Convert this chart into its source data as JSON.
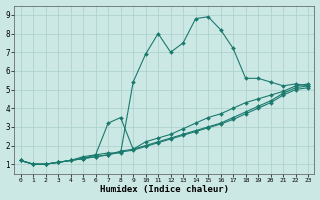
{
  "xlabel": "Humidex (Indice chaleur)",
  "bg_color": "#cce8e4",
  "grid_color": "#aacfcc",
  "line_color": "#1a7a6e",
  "xlim": [
    -0.5,
    23.5
  ],
  "ylim": [
    0.5,
    9.5
  ],
  "xticks": [
    0,
    1,
    2,
    3,
    4,
    5,
    6,
    7,
    8,
    9,
    10,
    11,
    12,
    13,
    14,
    15,
    16,
    17,
    18,
    19,
    20,
    21,
    22,
    23
  ],
  "yticks": [
    1,
    2,
    3,
    4,
    5,
    6,
    7,
    8,
    9
  ],
  "line1_x": [
    0,
    1,
    2,
    3,
    4,
    5,
    6,
    7,
    8,
    9,
    10,
    11,
    12,
    13,
    14,
    15,
    16,
    17,
    18,
    19,
    20,
    21,
    22,
    23
  ],
  "line1_y": [
    1.2,
    1.0,
    1.0,
    1.1,
    1.2,
    1.4,
    1.5,
    1.6,
    1.6,
    5.4,
    6.9,
    8.0,
    7.0,
    7.5,
    8.8,
    8.9,
    8.2,
    7.2,
    5.6,
    5.6,
    5.4,
    5.2,
    5.3,
    5.2
  ],
  "line2_x": [
    0,
    1,
    2,
    3,
    4,
    5,
    6,
    7,
    8,
    9,
    10,
    11,
    12,
    13,
    14,
    15,
    16,
    17,
    18,
    19,
    20,
    21,
    22,
    23
  ],
  "line2_y": [
    1.2,
    1.0,
    1.0,
    1.1,
    1.2,
    1.3,
    1.5,
    3.2,
    3.5,
    1.8,
    2.2,
    2.4,
    2.6,
    2.9,
    3.2,
    3.5,
    3.7,
    4.0,
    4.3,
    4.5,
    4.7,
    4.9,
    5.2,
    5.3
  ],
  "line3_x": [
    0,
    1,
    2,
    3,
    4,
    5,
    6,
    7,
    8,
    9,
    10,
    11,
    12,
    13,
    14,
    15,
    16,
    17,
    18,
    19,
    20,
    21,
    22,
    23
  ],
  "line3_y": [
    1.2,
    1.0,
    1.0,
    1.1,
    1.2,
    1.3,
    1.4,
    1.5,
    1.7,
    1.8,
    2.0,
    2.2,
    2.4,
    2.6,
    2.8,
    3.0,
    3.2,
    3.5,
    3.8,
    4.1,
    4.4,
    4.8,
    5.1,
    5.2
  ],
  "line4_x": [
    0,
    1,
    2,
    3,
    4,
    5,
    6,
    7,
    8,
    9,
    10,
    11,
    12,
    13,
    14,
    15,
    16,
    17,
    18,
    19,
    20,
    21,
    22,
    23
  ],
  "line4_y": [
    1.2,
    1.0,
    1.0,
    1.1,
    1.2,
    1.3,
    1.4,
    1.5,
    1.65,
    1.75,
    1.95,
    2.15,
    2.35,
    2.55,
    2.75,
    2.95,
    3.15,
    3.4,
    3.7,
    4.0,
    4.3,
    4.7,
    5.0,
    5.1
  ]
}
